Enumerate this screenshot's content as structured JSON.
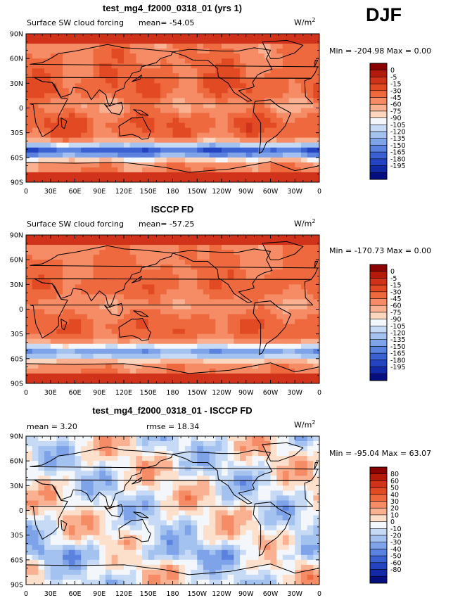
{
  "season": "DJF",
  "colors": {
    "scale1": [
      "#8b0000",
      "#b41a0a",
      "#d0321a",
      "#e24a24",
      "#ee6a3e",
      "#f58c66",
      "#f9b191",
      "#fdd6c0",
      "#f3f7fb",
      "#c6d9f5",
      "#a3c2f0",
      "#7ea3e8",
      "#5a82de",
      "#3a60d1",
      "#2443c0",
      "#122aa6",
      "#060f80"
    ],
    "scale2": [
      "#8b0000",
      "#b41a0a",
      "#d0321a",
      "#e24a24",
      "#ee6a3e",
      "#f58c66",
      "#f9b191",
      "#fde0cc",
      "#f3f7fb",
      "#c6d9f5",
      "#a3c2f0",
      "#7ea3e8",
      "#5a82de",
      "#3a60d1",
      "#2443c0",
      "#122aa6",
      "#060f80"
    ]
  },
  "chart_data": [
    {
      "type": "heatmap",
      "title": "test_mg4_f2000_0318_01 (yrs 1)",
      "variable": "Surface SW cloud forcing",
      "mean_label": "mean= -54.05",
      "mean": -54.05,
      "units_base": "W/m",
      "units_exp": "2",
      "minmax_label": "Min = -204.98 Max =   0.00",
      "min": -204.98,
      "max": 0.0,
      "xticks": [
        "0",
        "30E",
        "60E",
        "90E",
        "120E",
        "150E",
        "180",
        "150W",
        "120W",
        "90W",
        "60W",
        "30W",
        "0"
      ],
      "yticks": [
        "90N",
        "60N",
        "30N",
        "0",
        "30S",
        "60S",
        "90S"
      ],
      "levels": [
        "0",
        "-5",
        "-15",
        "-30",
        "-45",
        "-60",
        "-75",
        "-90",
        "-105",
        "-120",
        "-135",
        "-150",
        "-165",
        "-180",
        "-195"
      ],
      "palette": "scale1",
      "field": "model"
    },
    {
      "type": "heatmap",
      "title": "ISCCP FD",
      "variable": "Surface SW cloud forcing",
      "mean_label": "mean= -57.25",
      "mean": -57.25,
      "units_base": "W/m",
      "units_exp": "2",
      "minmax_label": "Min = -170.73 Max =   0.00",
      "min": -170.73,
      "max": 0.0,
      "xticks": [
        "0",
        "30E",
        "60E",
        "90E",
        "120E",
        "150E",
        "180",
        "150W",
        "120W",
        "90W",
        "60W",
        "30W",
        "0"
      ],
      "yticks": [
        "90N",
        "60N",
        "30N",
        "0",
        "30S",
        "60S",
        "90S"
      ],
      "levels": [
        "0",
        "-5",
        "-15",
        "-30",
        "-45",
        "-60",
        "-75",
        "-90",
        "-105",
        "-120",
        "-135",
        "-150",
        "-165",
        "-180",
        "-195"
      ],
      "palette": "scale1",
      "field": "obs"
    },
    {
      "type": "heatmap",
      "title": "test_mg4_f2000_0318_01 - ISCCP FD",
      "mean_label": "mean =   3.20",
      "mean": 3.2,
      "rmse_label": "rmse =  18.34",
      "rmse": 18.34,
      "units_base": "W/m",
      "units_exp": "2",
      "minmax_label": "Min = -95.04 Max =  63.07",
      "min": -95.04,
      "max": 63.07,
      "xticks": [
        "0",
        "30E",
        "60E",
        "90E",
        "120E",
        "150E",
        "180",
        "150W",
        "120W",
        "90W",
        "60W",
        "30W",
        "0"
      ],
      "yticks": [
        "90N",
        "60N",
        "30N",
        "0",
        "30S",
        "60S",
        "90S"
      ],
      "levels": [
        "80",
        "60",
        "50",
        "40",
        "30",
        "20",
        "10",
        "0",
        "-10",
        "-20",
        "-30",
        "-40",
        "-50",
        "-60",
        "-80"
      ],
      "palette": "scale2",
      "field": "diff"
    }
  ]
}
